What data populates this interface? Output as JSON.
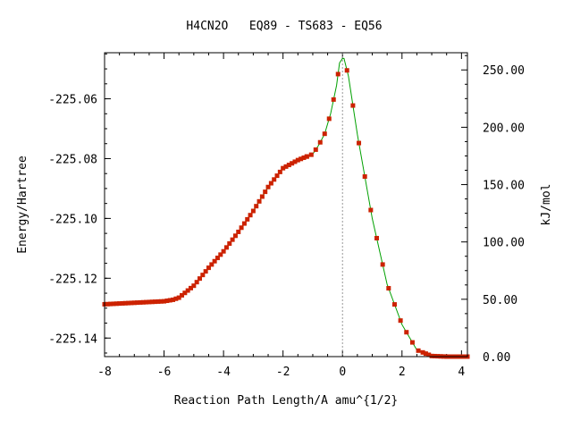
{
  "chart_data": {
    "type": "line",
    "title": "H4CN2O   EQ89 - TS683 - EQ56",
    "xlabel": "Reaction Path Length/A amu^{1/2}",
    "ylabel": "Energy/Hartree",
    "y2label": "kJ/mol",
    "xlim": [
      -8,
      4.2
    ],
    "ylim": [
      -225.1462,
      -225.0446
    ],
    "y2lim": [
      0,
      265
    ],
    "x_ticks": [
      "-8",
      "-6",
      "-4",
      "-2",
      "0",
      "2",
      "4"
    ],
    "x_tick_values": [
      -8,
      -6,
      -4,
      -2,
      0,
      2,
      4
    ],
    "y_ticks": [
      "-225.06",
      "-225.08",
      "-225.10",
      "-225.12",
      "-225.14"
    ],
    "y_tick_values": [
      -225.06,
      -225.08,
      -225.1,
      -225.12,
      -225.14
    ],
    "y2_ticks": [
      "250.00",
      "200.00",
      "150.00",
      "100.00",
      "50.00",
      "0.00"
    ],
    "y2_tick_values": [
      250,
      200,
      150,
      100,
      50,
      0
    ],
    "ts_marker_x": 0,
    "colors": {
      "line": "#00a000",
      "marker": "#cc2200",
      "ts_line": "#999999"
    },
    "series": [
      {
        "x": [
          -8.0,
          -7.0,
          -6.0,
          -5.7,
          -5.5,
          -5.0,
          -4.5,
          -4.0,
          -3.5,
          -3.0,
          -2.5,
          -2.0,
          -1.5,
          -1.0,
          -0.8,
          -0.6,
          -0.4,
          -0.2,
          -0.1,
          0.0,
          0.05,
          0.2,
          0.5,
          1.0,
          1.5,
          2.0,
          2.5,
          3.0,
          3.5,
          4.2
        ],
        "y": [
          -225.1287,
          -225.1282,
          -225.1277,
          -225.1272,
          -225.1265,
          -225.1225,
          -225.1165,
          -225.111,
          -225.1045,
          -225.0975,
          -225.0895,
          -225.0832,
          -225.0805,
          -225.0785,
          -225.0755,
          -225.0717,
          -225.065,
          -225.0555,
          -225.048,
          -225.0465,
          -225.0465,
          -225.0525,
          -225.072,
          -225.1,
          -225.122,
          -225.1355,
          -225.144,
          -225.146,
          -225.1462,
          -225.1462
        ]
      }
    ]
  }
}
